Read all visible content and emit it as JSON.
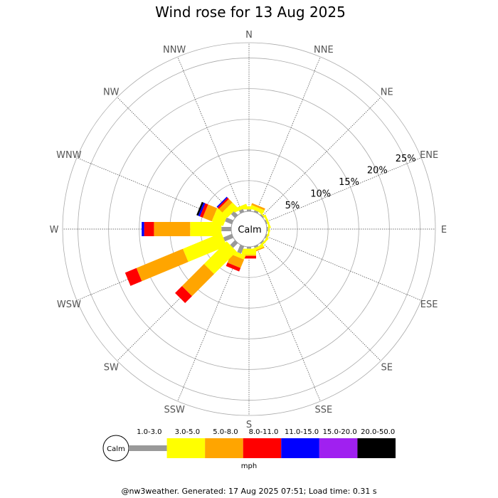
{
  "chart_data": {
    "type": "wind-rose",
    "title": "Wind rose for 13 Aug 2025",
    "directions": [
      "N",
      "NNE",
      "NE",
      "ENE",
      "E",
      "ESE",
      "SE",
      "SSE",
      "S",
      "SSW",
      "SW",
      "WSW",
      "W",
      "WNW",
      "NW",
      "NNW"
    ],
    "radial_ticks": [
      "5%",
      "10%",
      "15%",
      "20%",
      "25%"
    ],
    "radial_max_pct": 27.5,
    "calm_label": "Calm",
    "speed_bins": [
      {
        "label": "1.0-3.0",
        "color": "#999999"
      },
      {
        "label": "3.0-5.0",
        "color": "#ffff00"
      },
      {
        "label": "5.0-8.0",
        "color": "#ffa500"
      },
      {
        "label": "8.0-11.0",
        "color": "#ff0000"
      },
      {
        "label": "11.0-15.0",
        "color": "#0000ff"
      },
      {
        "label": "15.0-20.0",
        "color": "#a020f0"
      },
      {
        "label": "20.0-50.0",
        "color": "#000000"
      }
    ],
    "unit": "mph",
    "series": [
      {
        "dir": "N",
        "values": [
          0.3,
          0.5,
          0.0,
          0.0,
          0.0,
          0.0,
          0.0
        ]
      },
      {
        "dir": "NNE",
        "values": [
          0.3,
          0.6,
          0.3,
          0.0,
          0.0,
          0.0,
          0.0
        ]
      },
      {
        "dir": "NE",
        "values": [
          0.2,
          0.2,
          0.0,
          0.0,
          0.0,
          0.0,
          0.0
        ]
      },
      {
        "dir": "ENE",
        "values": [
          0.2,
          0.3,
          0.0,
          0.0,
          0.0,
          0.0,
          0.0
        ]
      },
      {
        "dir": "E",
        "values": [
          0.2,
          0.2,
          0.0,
          0.0,
          0.0,
          0.0,
          0.0
        ]
      },
      {
        "dir": "ESE",
        "values": [
          0.2,
          0.2,
          0.0,
          0.0,
          0.0,
          0.0,
          0.0
        ]
      },
      {
        "dir": "SE",
        "values": [
          0.2,
          0.3,
          0.0,
          0.0,
          0.0,
          0.0,
          0.0
        ]
      },
      {
        "dir": "SSE",
        "values": [
          0.3,
          0.4,
          0.2,
          0.0,
          0.0,
          0.0,
          0.0
        ]
      },
      {
        "dir": "S",
        "values": [
          0.3,
          1.0,
          0.2,
          0.4,
          0.0,
          0.0,
          0.0
        ]
      },
      {
        "dir": "SSW",
        "values": [
          1.3,
          0.7,
          1.5,
          0.6,
          0.0,
          0.0,
          0.0
        ]
      },
      {
        "dir": "SW",
        "values": [
          1.1,
          5.2,
          5.1,
          1.6,
          0.0,
          0.0,
          0.0
        ]
      },
      {
        "dir": "WSW",
        "values": [
          1.5,
          6.8,
          8.2,
          2.0,
          0.0,
          0.0,
          0.0
        ]
      },
      {
        "dir": "W",
        "values": [
          1.6,
          5.1,
          5.9,
          1.6,
          0.4,
          0.0,
          0.0
        ]
      },
      {
        "dir": "WNW",
        "values": [
          1.2,
          2.0,
          1.6,
          0.5,
          0.3,
          0.0,
          0.3
        ]
      },
      {
        "dir": "NW",
        "values": [
          0.9,
          1.2,
          0.8,
          0.3,
          0.2,
          0.0,
          0.0
        ]
      },
      {
        "dir": "NNW",
        "values": [
          0.5,
          0.6,
          0.0,
          0.0,
          0.0,
          0.0,
          0.0
        ]
      }
    ]
  },
  "footer": "@nw3weather. Generated: 17 Aug 2025 07:51; Load time: 0.31 s"
}
